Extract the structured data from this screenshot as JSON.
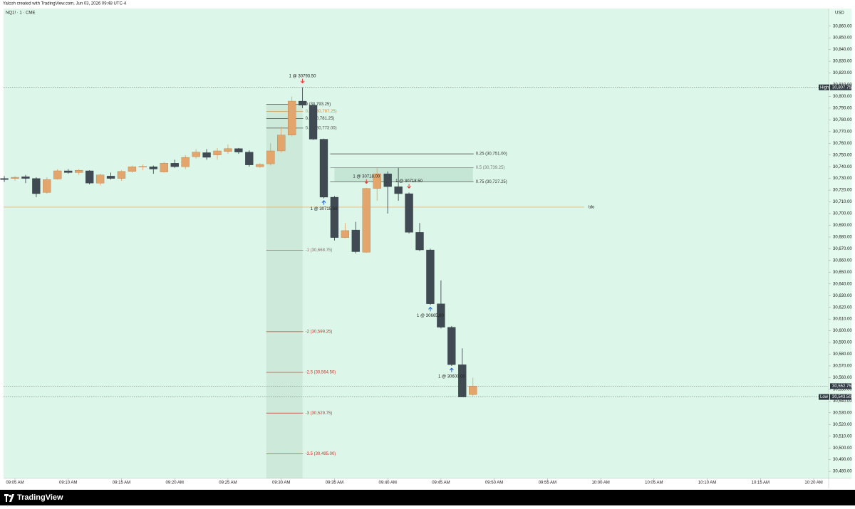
{
  "header": {
    "credit": "Yalcoh created with TradingView.com, Jun 03, 2026 09:48 UTC-4",
    "brand": "TradingView"
  },
  "chart_data": {
    "type": "candlestick",
    "title": "NQ1! · 1 · CME",
    "currency": "USD",
    "up_color": "#e3a56b",
    "down_color": "#3f4a53",
    "background": "#dcf7e9",
    "grid": false,
    "candles": [
      {
        "x": 544,
        "open": 30730,
        "high": 30732,
        "low": 30727,
        "close": 30729
      },
      {
        "x": 545,
        "open": 30730,
        "high": 30732,
        "low": 30728,
        "close": 30731
      },
      {
        "x": 546,
        "open": 30731.5,
        "high": 30733,
        "low": 30726,
        "close": 30730
      },
      {
        "x": 547,
        "open": 30730,
        "high": 30731,
        "low": 30714,
        "close": 30717
      },
      {
        "x": 548,
        "open": 30718,
        "high": 30731,
        "low": 30717,
        "close": 30729
      },
      {
        "x": 549,
        "open": 30729.5,
        "high": 30738,
        "low": 30729,
        "close": 30736.5
      },
      {
        "x": 550,
        "open": 30736.5,
        "high": 30738,
        "low": 30734,
        "close": 30735
      },
      {
        "x": 551,
        "open": 30735,
        "high": 30738,
        "low": 30733,
        "close": 30737
      },
      {
        "x": 552,
        "open": 30736.5,
        "high": 30737,
        "low": 30725,
        "close": 30726
      },
      {
        "x": 553,
        "open": 30726,
        "high": 30734,
        "low": 30724,
        "close": 30733
      },
      {
        "x": 554,
        "open": 30732,
        "high": 30735,
        "low": 30729,
        "close": 30730
      },
      {
        "x": 555,
        "open": 30730,
        "high": 30737,
        "low": 30728,
        "close": 30736
      },
      {
        "x": 556,
        "open": 30736,
        "high": 30741,
        "low": 30735,
        "close": 30740
      },
      {
        "x": 557,
        "open": 30740,
        "high": 30742,
        "low": 30737,
        "close": 30740.25
      },
      {
        "x": 558,
        "open": 30740,
        "high": 30741,
        "low": 30734,
        "close": 30738
      },
      {
        "x": 559,
        "open": 30735.5,
        "high": 30744,
        "low": 30735,
        "close": 30743
      },
      {
        "x": 560,
        "open": 30743,
        "high": 30746,
        "low": 30739,
        "close": 30740
      },
      {
        "x": 561,
        "open": 30740,
        "high": 30750,
        "low": 30738,
        "close": 30748
      },
      {
        "x": 562,
        "open": 30748.5,
        "high": 30755,
        "low": 30747,
        "close": 30752.5
      },
      {
        "x": 563,
        "open": 30752,
        "high": 30755,
        "low": 30746,
        "close": 30748
      },
      {
        "x": 564,
        "open": 30750,
        "high": 30756,
        "low": 30746,
        "close": 30753.5
      },
      {
        "x": 565,
        "open": 30753,
        "high": 30759,
        "low": 30751,
        "close": 30755.5
      },
      {
        "x": 566,
        "open": 30755.5,
        "high": 30756,
        "low": 30751,
        "close": 30752.5
      },
      {
        "x": 567,
        "open": 30752.5,
        "high": 30754,
        "low": 30740,
        "close": 30741.5
      },
      {
        "x": 568,
        "open": 30740,
        "high": 30743,
        "low": 30739,
        "close": 30742
      },
      {
        "x": 569,
        "open": 30742.5,
        "high": 30760,
        "low": 30741,
        "close": 30753.5
      },
      {
        "x": 570,
        "open": 30753.5,
        "high": 30774,
        "low": 30752,
        "close": 30767
      },
      {
        "x": 571,
        "open": 30767,
        "high": 30800,
        "low": 30766,
        "close": 30796
      },
      {
        "x": 572,
        "open": 30796,
        "high": 30807.75,
        "low": 30790,
        "close": 30792.5
      },
      {
        "x": 573,
        "open": 30792.5,
        "high": 30793.5,
        "low": 30763,
        "close": 30763.5
      },
      {
        "x": 574,
        "open": 30763.5,
        "high": 30764,
        "low": 30713,
        "close": 30714
      },
      {
        "x": 575,
        "open": 30714,
        "high": 30715,
        "low": 30677,
        "close": 30679.5
      },
      {
        "x": 576,
        "open": 30679.5,
        "high": 30692,
        "low": 30679,
        "close": 30685.5
      },
      {
        "x": 577,
        "open": 30686,
        "high": 30693,
        "low": 30666,
        "close": 30667.5
      },
      {
        "x": 578,
        "open": 30667,
        "high": 30722,
        "low": 30666.5,
        "close": 30721.5
      },
      {
        "x": 579,
        "open": 30721.5,
        "high": 30739,
        "low": 30711,
        "close": 30734
      },
      {
        "x": 580,
        "open": 30734,
        "high": 30736,
        "low": 30700,
        "close": 30723
      },
      {
        "x": 581,
        "open": 30723,
        "high": 30739,
        "low": 30711,
        "close": 30717
      },
      {
        "x": 582,
        "open": 30717,
        "high": 30718,
        "low": 30683,
        "close": 30684
      },
      {
        "x": 583,
        "open": 30684,
        "high": 30692,
        "low": 30668,
        "close": 30669
      },
      {
        "x": 584,
        "open": 30669,
        "high": 30670,
        "low": 30622,
        "close": 30623
      },
      {
        "x": 585,
        "open": 30623,
        "high": 30643,
        "low": 30602,
        "close": 30603
      },
      {
        "x": 586,
        "open": 30603,
        "high": 30604,
        "low": 30570,
        "close": 30571
      },
      {
        "x": 587,
        "open": 30571,
        "high": 30585,
        "low": 30543.5,
        "close": 30543.5
      },
      {
        "x": 588,
        "open": 30545.5,
        "high": 30560,
        "low": 30544,
        "close": 30552.75
      }
    ],
    "trades": [
      {
        "x": 572,
        "value": 30793.5,
        "label": "1 @ 30793.50",
        "side": "sell"
      },
      {
        "x": 574,
        "value": 30715.5,
        "label": "1 @ 30715.50",
        "side": "buy"
      },
      {
        "x": 578,
        "value": 30718,
        "label": "1 @ 30718.00",
        "side": "sell"
      },
      {
        "x": 582,
        "value": 30718.5,
        "label": "1 @ 30718.50",
        "side": "sell"
      },
      {
        "x": 584,
        "value": 30665,
        "label": "1 @ 30665.00",
        "side": "buy"
      },
      {
        "x": 586,
        "value": 30600,
        "label": "1 @ 30600.00",
        "side": "buy"
      }
    ],
    "fib_levels": [
      {
        "x_start": 569,
        "x_end": 572,
        "value": 30793.25,
        "label": "0 (30,793.25)",
        "color": "#333333"
      },
      {
        "x_start": 569,
        "x_end": 572,
        "value": 30787.25,
        "label": "0.25 (30,787.25)",
        "color": "#d08a3a"
      },
      {
        "x_start": 569,
        "x_end": 572,
        "value": 30781.25,
        "label": "0.5 (30,781.25)",
        "color": "#333333"
      },
      {
        "x_start": 569,
        "x_end": 572,
        "value": 30773,
        "label": "0.75 (30,773.00)",
        "color": "#555555"
      },
      {
        "x_start": 569,
        "x_end": 572,
        "value": 30668.75,
        "label": "-1 (30,668.75)",
        "color": "#8a6a6a"
      },
      {
        "x_start": 569,
        "x_end": 572,
        "value": 30599.25,
        "label": "-2 (30,599.25)",
        "color": "#c0392b"
      },
      {
        "x_start": 569,
        "x_end": 572,
        "value": 30564.5,
        "label": "-2.5 (30,564.50)",
        "color": "#c0392b"
      },
      {
        "x_start": 569,
        "x_end": 572,
        "value": 30529.75,
        "label": "-3 (30,529.75)",
        "color": "#c0392b"
      },
      {
        "x_start": 569,
        "x_end": 572,
        "value": 30495,
        "label": "-3.5 (30,495.00)",
        "color": "#c0392b"
      },
      {
        "x_start": 575,
        "x_end": 588,
        "value": 30751,
        "label": "0.25 (30,751.00)",
        "color": "#333333"
      },
      {
        "x_start": 575,
        "x_end": 588,
        "value": 30739.25,
        "label": "0.5 (30,739.25)",
        "color": "#777777"
      },
      {
        "x_start": 575,
        "x_end": 588,
        "value": 30727.25,
        "label": "0.75 (30,727.25)",
        "color": "#333333"
      }
    ],
    "tdo": {
      "value": 30705.5,
      "label": "tdo",
      "color": "#f0a04b"
    },
    "price_labels": [
      {
        "value": 30807.75,
        "label": "30,807.75",
        "tag": "High"
      },
      {
        "value": 30552.75,
        "label": "30,552.75"
      },
      {
        "value": 30543.5,
        "label": "30,543.50",
        "tag": "Low"
      }
    ],
    "xlim": [
      543.93,
      621.4
    ],
    "ylim": [
      30474,
      30875
    ],
    "xticks": [
      {
        "value": 545,
        "label": "09:05 AM"
      },
      {
        "value": 550,
        "label": "09:10 AM"
      },
      {
        "value": 555,
        "label": "09:15 AM"
      },
      {
        "value": 560,
        "label": "09:20 AM"
      },
      {
        "value": 565,
        "label": "09:25 AM"
      },
      {
        "value": 570,
        "label": "09:30 AM"
      },
      {
        "value": 575,
        "label": "09:35 AM"
      },
      {
        "value": 580,
        "label": "09:40 AM"
      },
      {
        "value": 585,
        "label": "09:45 AM"
      },
      {
        "value": 590,
        "label": "09:50 AM"
      },
      {
        "value": 595,
        "label": "09:55 AM"
      },
      {
        "value": 600,
        "label": "10:00 AM"
      },
      {
        "value": 605,
        "label": "10:05 AM"
      },
      {
        "value": 610,
        "label": "10:10 AM"
      },
      {
        "value": 615,
        "label": "10:15 AM"
      },
      {
        "value": 620,
        "label": "10:20 AM"
      }
    ],
    "yticks": [
      {
        "value": 30480,
        "label": "30,480.00"
      },
      {
        "value": 30490,
        "label": "30,490.00"
      },
      {
        "value": 30500,
        "label": "30,500.00"
      },
      {
        "value": 30510,
        "label": "30,510.00"
      },
      {
        "value": 30520,
        "label": "30,520.00"
      },
      {
        "value": 30530,
        "label": "30,530.00"
      },
      {
        "value": 30540,
        "label": "30,540.00"
      },
      {
        "value": 30550,
        "label": "30,550.00"
      },
      {
        "value": 30560,
        "label": "30,560.00"
      },
      {
        "value": 30570,
        "label": "30,570.00"
      },
      {
        "value": 30580,
        "label": "30,580.00"
      },
      {
        "value": 30590,
        "label": "30,590.00"
      },
      {
        "value": 30600,
        "label": "30,600.00"
      },
      {
        "value": 30610,
        "label": "30,610.00"
      },
      {
        "value": 30620,
        "label": "30,620.00"
      },
      {
        "value": 30630,
        "label": "30,630.00"
      },
      {
        "value": 30640,
        "label": "30,640.00"
      },
      {
        "value": 30650,
        "label": "30,650.00"
      },
      {
        "value": 30660,
        "label": "30,660.00"
      },
      {
        "value": 30670,
        "label": "30,670.00"
      },
      {
        "value": 30680,
        "label": "30,680.00"
      },
      {
        "value": 30690,
        "label": "30,690.00"
      },
      {
        "value": 30700,
        "label": "30,700.00"
      },
      {
        "value": 30710,
        "label": "30,710.00"
      },
      {
        "value": 30720,
        "label": "30,720.00"
      },
      {
        "value": 30730,
        "label": "30,730.00"
      },
      {
        "value": 30740,
        "label": "30,740.00"
      },
      {
        "value": 30750,
        "label": "30,750.00"
      },
      {
        "value": 30760,
        "label": "30,760.00"
      },
      {
        "value": 30770,
        "label": "30,770.00"
      },
      {
        "value": 30780,
        "label": "30,780.00"
      },
      {
        "value": 30790,
        "label": "30,790.00"
      },
      {
        "value": 30800,
        "label": "30,800.00"
      },
      {
        "value": 30810,
        "label": "30,810.00"
      },
      {
        "value": 30820,
        "label": "30,820.00"
      },
      {
        "value": 30830,
        "label": "30,830.00"
      },
      {
        "value": 30840,
        "label": "30,840.00"
      },
      {
        "value": 30850,
        "label": "30,850.00"
      },
      {
        "value": 30860,
        "label": "30,860.00"
      }
    ]
  }
}
